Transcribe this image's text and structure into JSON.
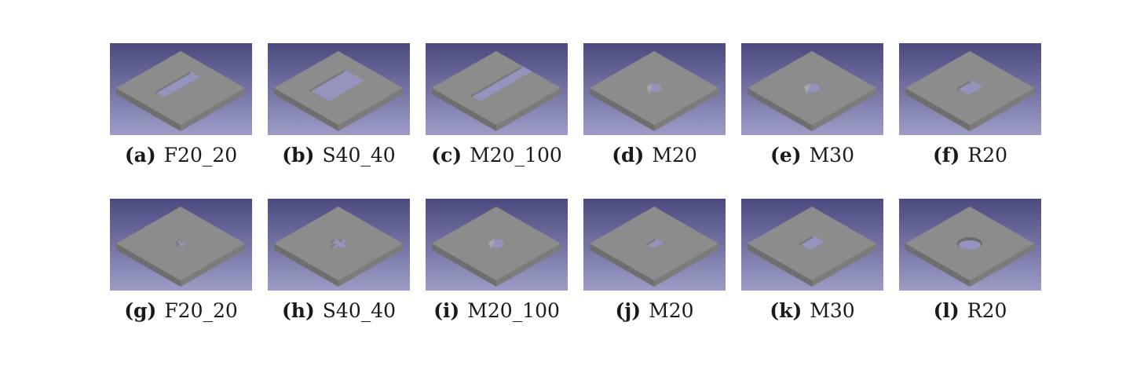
{
  "figure": {
    "panels": [
      {
        "label": "(a)",
        "name": "F20_20",
        "feature": "long-slot",
        "row": 1
      },
      {
        "label": "(b)",
        "name": "S40_40",
        "feature": "wide-slot",
        "row": 1
      },
      {
        "label": "(c)",
        "name": "M20_100",
        "feature": "edge-slot",
        "row": 1
      },
      {
        "label": "(d)",
        "name": "M20",
        "feature": "hex-hole",
        "row": 1
      },
      {
        "label": "(e)",
        "name": "M30",
        "feature": "hex-hole",
        "row": 1
      },
      {
        "label": "(f)",
        "name": "R20",
        "feature": "rect-hole",
        "row": 1
      },
      {
        "label": "(g)",
        "name": "F20_20",
        "feature": "small-cross",
        "row": 2
      },
      {
        "label": "(h)",
        "name": "S40_40",
        "feature": "large-cross",
        "row": 2
      },
      {
        "label": "(i)",
        "name": "M20_100",
        "feature": "hex-hole",
        "row": 2
      },
      {
        "label": "(j)",
        "name": "M20",
        "feature": "small-rect-hole",
        "row": 2
      },
      {
        "label": "(k)",
        "name": "M30",
        "feature": "rect-hole",
        "row": 2
      },
      {
        "label": "(l)",
        "name": "R20",
        "feature": "round-hole",
        "row": 2
      }
    ],
    "colors": {
      "background_top": "#4a4a80",
      "background_bottom": "#9c9cc6",
      "plate_top": "#8c8c8c",
      "plate_side_front": "#6e6e6e",
      "plate_side_right": "#7b7b7b",
      "hole_floor": "#9494be"
    }
  }
}
